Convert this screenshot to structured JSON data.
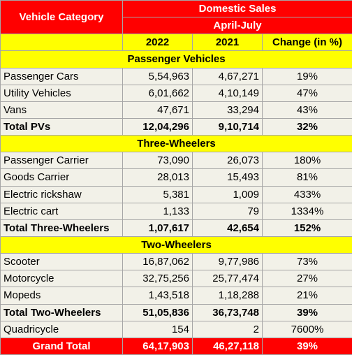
{
  "header": {
    "category": "Vehicle Category",
    "group": "Domestic Sales",
    "period": "April-July",
    "columns": [
      "2022",
      "2021",
      "Change (in %)"
    ]
  },
  "sections": [
    {
      "title": "Passenger Vehicles",
      "rows": [
        [
          "Passenger Cars",
          "5,54,963",
          "4,67,271",
          "19%"
        ],
        [
          "Utility Vehicles",
          "6,01,662",
          "4,10,149",
          "47%"
        ],
        [
          "Vans",
          "47,671",
          "33,294",
          "43%"
        ]
      ],
      "total": [
        "Total PVs",
        "12,04,296",
        "9,10,714",
        "32%"
      ]
    },
    {
      "title": "Three-Wheelers",
      "rows": [
        [
          "Passenger Carrier",
          "73,090",
          "26,073",
          "180%"
        ],
        [
          "Goods Carrier",
          "28,013",
          "15,493",
          "81%"
        ],
        [
          "Electric rickshaw",
          "5,381",
          "1,009",
          "433%"
        ],
        [
          "Electric cart",
          "1,133",
          "79",
          "1334%"
        ]
      ],
      "total": [
        "Total Three-Wheelers",
        "1,07,617",
        "42,654",
        "152%"
      ]
    },
    {
      "title": "Two-Wheelers",
      "rows": [
        [
          "Scooter",
          "16,87,062",
          "9,77,986",
          "73%"
        ],
        [
          "Motorcycle",
          "32,75,256",
          "25,77,474",
          "27%"
        ],
        [
          "Mopeds",
          "1,43,518",
          "1,18,288",
          "21%"
        ]
      ],
      "total": [
        "Total Two-Wheelers",
        "51,05,836",
        "36,73,748",
        "39%"
      ]
    }
  ],
  "extra_rows": [
    [
      "Quadricycle",
      "154",
      "2",
      "7600%"
    ]
  ],
  "grand_total": [
    "Grand Total",
    "64,17,903",
    "46,27,118",
    "39%"
  ]
}
